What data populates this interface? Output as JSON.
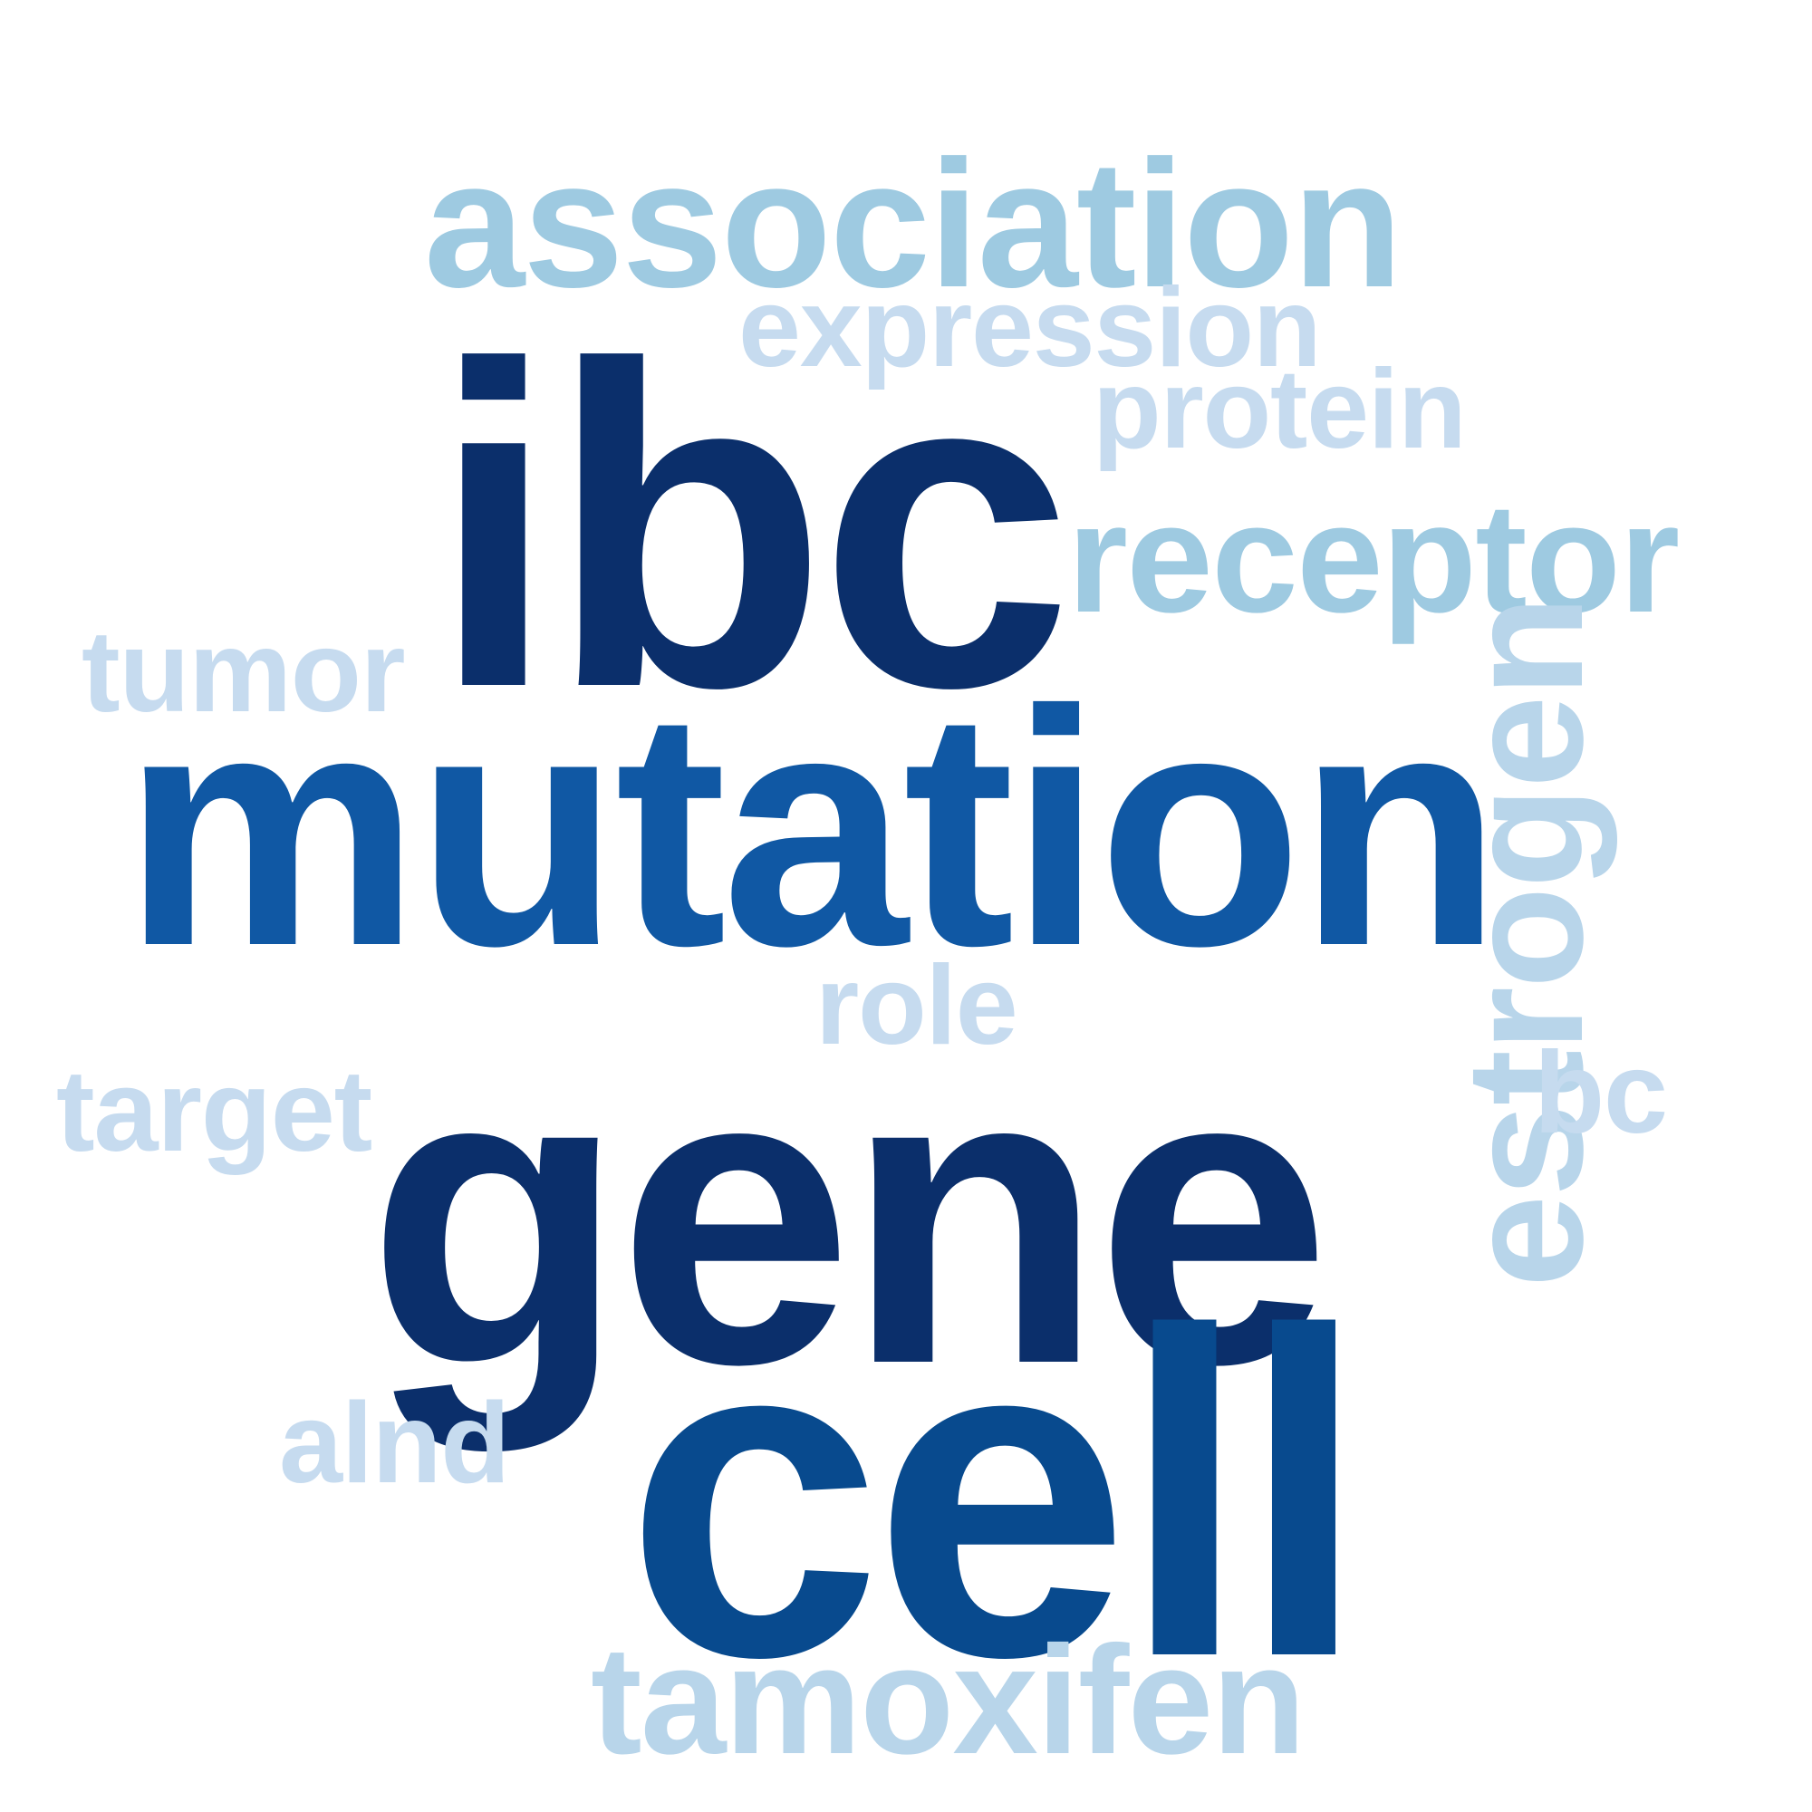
{
  "word_cloud": {
    "words": {
      "ibc": {
        "text": "ibc",
        "color": "#0b2f6b"
      },
      "mutation": {
        "text": "mutation",
        "color": "#1058a4"
      },
      "gene": {
        "text": "gene",
        "color": "#0b2f6b"
      },
      "cell": {
        "text": "cell",
        "color": "#084a8e"
      },
      "association": {
        "text": "association",
        "color": "#9ecae1"
      },
      "expression": {
        "text": "expression",
        "color": "#c6dbef"
      },
      "protein": {
        "text": "protein",
        "color": "#c6dbef"
      },
      "receptor": {
        "text": "receptor",
        "color": "#9ecae1"
      },
      "tumor": {
        "text": "tumor",
        "color": "#c6dbef"
      },
      "role": {
        "text": "role",
        "color": "#c6dbef"
      },
      "target": {
        "text": "target",
        "color": "#c6dbef"
      },
      "estrogen": {
        "text": "estrogen",
        "color": "#b8d5ea"
      },
      "bc": {
        "text": "bc",
        "color": "#c6dbef"
      },
      "alnd": {
        "text": "alnd",
        "color": "#c6dbef"
      },
      "tamoxifen": {
        "text": "tamoxifen",
        "color": "#b8d5ea"
      }
    }
  }
}
